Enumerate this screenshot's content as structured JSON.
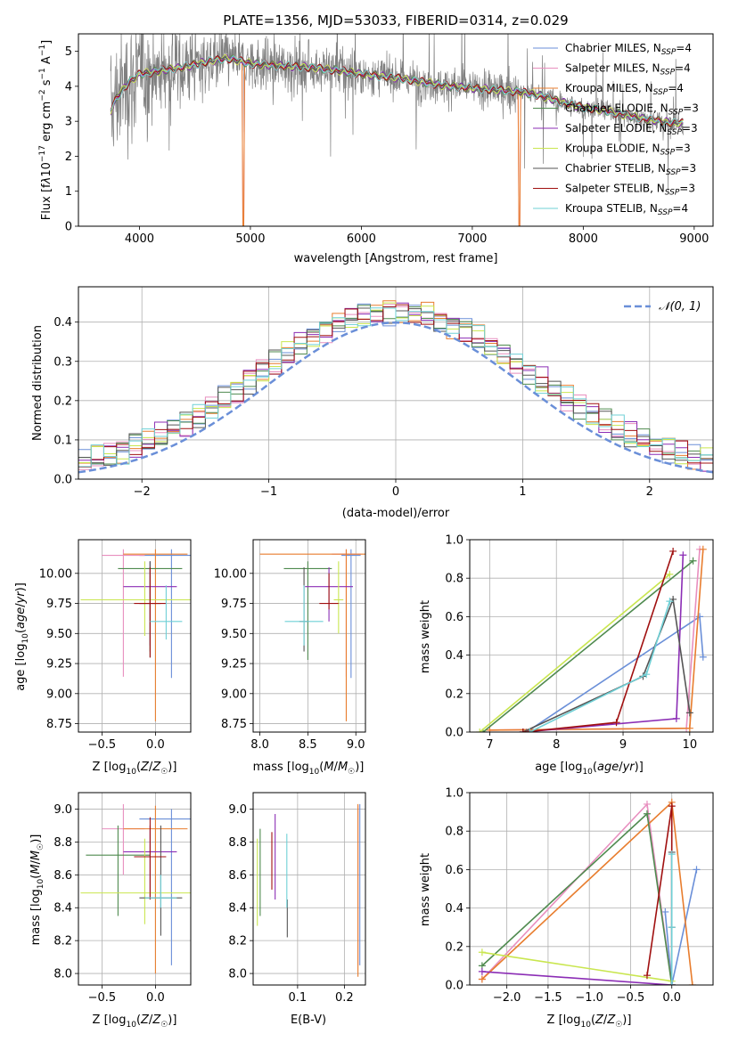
{
  "series_colors": {
    "Chabrier MILES": "#6a8fd8",
    "Salpeter MILES": "#e88fbf",
    "Kroupa MILES": "#e87d2e",
    "Chabrier ELODIE": "#4f8a4f",
    "Salpeter ELODIE": "#8b2db5",
    "Kroupa ELODIE": "#c9e64f",
    "Chabrier STELIB": "#555555",
    "Salpeter STELIB": "#a01010",
    "Kroupa STELIB": "#6fd0d6"
  },
  "chart_data": [
    {
      "id": "spectrum",
      "type": "line",
      "title": "PLATE=1356, MJD=53033, FIBERID=0314, z=0.029",
      "xlabel": "wavelength [Angstrom, rest frame]",
      "ylabel": "Flux [f_λ 10^-17 erg cm^-2 s^-1 A^-1]",
      "xlim": [
        3450,
        9170
      ],
      "ylim": [
        0,
        5.5
      ],
      "xticks": [
        4000,
        5000,
        6000,
        7000,
        8000,
        9000
      ],
      "yticks": [
        0,
        1,
        2,
        3,
        4,
        5
      ],
      "legend": [
        {
          "label": "Chabrier MILES, N_SSP=4",
          "series": "Chabrier MILES"
        },
        {
          "label": "Salpeter MILES, N_SSP=4",
          "series": "Salpeter MILES"
        },
        {
          "label": "Kroupa MILES, N_SSP=4",
          "series": "Kroupa MILES"
        },
        {
          "label": "Chabrier ELODIE, N_SSP=3",
          "series": "Chabrier ELODIE"
        },
        {
          "label": "Salpeter ELODIE, N_SSP=3",
          "series": "Salpeter ELODIE"
        },
        {
          "label": "Kroupa ELODIE, N_SSP=3",
          "series": "Kroupa ELODIE"
        },
        {
          "label": "Chabrier STELIB, N_SSP=3",
          "series": "Chabrier STELIB"
        },
        {
          "label": "Salpeter STELIB, N_SSP=3",
          "series": "Salpeter STELIB"
        },
        {
          "label": "Kroupa STELIB, N_SSP=4",
          "series": "Kroupa STELIB"
        }
      ],
      "legend_position": "top-right",
      "continuum": [
        [
          3740,
          3.3
        ],
        [
          3800,
          3.7
        ],
        [
          3900,
          4.1
        ],
        [
          4000,
          4.35
        ],
        [
          4200,
          4.45
        ],
        [
          4400,
          4.55
        ],
        [
          4600,
          4.7
        ],
        [
          4800,
          4.8
        ],
        [
          5000,
          4.65
        ],
        [
          5200,
          4.6
        ],
        [
          5500,
          4.55
        ],
        [
          5800,
          4.45
        ],
        [
          6000,
          4.35
        ],
        [
          6300,
          4.25
        ],
        [
          6500,
          4.15
        ],
        [
          6800,
          4.0
        ],
        [
          7000,
          3.95
        ],
        [
          7400,
          3.85
        ],
        [
          7600,
          3.75
        ],
        [
          7800,
          3.55
        ],
        [
          8000,
          3.4
        ],
        [
          8200,
          3.3
        ],
        [
          8500,
          3.1
        ],
        [
          8800,
          2.95
        ]
      ]
    },
    {
      "id": "residuals",
      "type": "line",
      "xlabel": "(data-model)/error",
      "ylabel": "Normed distribution",
      "xlim": [
        -2.5,
        2.5
      ],
      "ylim": [
        0,
        0.49
      ],
      "xticks": [
        -2,
        -1,
        0,
        1,
        2
      ],
      "yticks": [
        0.0,
        0.1,
        0.2,
        0.3,
        0.4
      ],
      "grid": true,
      "legend": [
        {
          "label": "𝒩(0, 1)"
        }
      ],
      "legend_position": "top-right",
      "reference_curve": "normal(0,1)",
      "reference_color": "#6a8fd8"
    },
    {
      "id": "age-vs-Z",
      "type": "scatter",
      "xlabel": "Z [log10(Z/Z☉)]",
      "ylabel": "age [log10(age/yr)]",
      "xlim": [
        -0.72,
        0.33
      ],
      "ylim": [
        8.68,
        10.28
      ],
      "xticks": [
        -0.5,
        0.0
      ],
      "yticks": [
        8.75,
        9.0,
        9.25,
        9.5,
        9.75,
        10.0
      ],
      "grid": true,
      "points": [
        {
          "series": "Chabrier MILES",
          "x": 0.15,
          "y": 10.15,
          "xerr": 0.3,
          "yerr": [
            9.13,
            10.2
          ]
        },
        {
          "series": "Salpeter MILES",
          "x": -0.3,
          "y": 10.15,
          "xerr": 0.2,
          "yerr": [
            9.14,
            10.2
          ]
        },
        {
          "series": "Kroupa MILES",
          "x": 0.0,
          "y": 10.16,
          "xerr": 0.3,
          "yerr": [
            8.77,
            10.2
          ]
        },
        {
          "series": "Chabrier ELODIE",
          "x": -0.05,
          "y": 10.04,
          "xerr": 0.3,
          "yerr": [
            9.35,
            10.1
          ]
        },
        {
          "series": "Salpeter ELODIE",
          "x": -0.05,
          "y": 9.89,
          "xerr": 0.25,
          "yerr": [
            9.4,
            10.1
          ]
        },
        {
          "series": "Kroupa ELODIE",
          "x": -0.1,
          "y": 9.78,
          "xerr": 0.6,
          "yerr": [
            9.48,
            10.1
          ]
        },
        {
          "series": "Chabrier STELIB",
          "x": -0.05,
          "y": 9.75,
          "xerr": 0.1,
          "yerr": [
            9.3,
            10.1
          ]
        },
        {
          "series": "Salpeter STELIB",
          "x": -0.05,
          "y": 9.75,
          "xerr": 0.15,
          "yerr": [
            9.3,
            10.05
          ]
        },
        {
          "series": "Kroupa STELIB",
          "x": 0.1,
          "y": 9.6,
          "xerr": 0.15,
          "yerr": [
            9.45,
            9.9
          ]
        }
      ]
    },
    {
      "id": "age-vs-mass",
      "type": "scatter",
      "xlabel": "mass [log10(M/M☉)]",
      "xlim": [
        7.93,
        9.1
      ],
      "ylim": [
        8.68,
        10.28
      ],
      "xticks": [
        8.0,
        8.5,
        9.0
      ],
      "yticks": [
        8.75,
        9.0,
        9.25,
        9.5,
        9.75,
        10.0
      ],
      "grid": true,
      "points": [
        {
          "series": "Chabrier MILES",
          "x": 8.95,
          "y": 10.15,
          "xerr": 0.1,
          "yerr": [
            9.13,
            10.2
          ]
        },
        {
          "series": "Salpeter MILES",
          "x": 8.9,
          "y": 10.16,
          "xerr": 0.15,
          "yerr": [
            9.14,
            10.2
          ]
        },
        {
          "series": "Kroupa MILES",
          "x": 8.9,
          "y": 10.16,
          "xerr": 0.9,
          "yerr": [
            8.77,
            10.2
          ]
        },
        {
          "series": "Chabrier ELODIE",
          "x": 8.5,
          "y": 10.04,
          "xerr": 0.25,
          "yerr": [
            9.28,
            10.1
          ]
        },
        {
          "series": "Salpeter ELODIE",
          "x": 8.72,
          "y": 9.89,
          "xerr": 0.25,
          "yerr": [
            9.6,
            10.05
          ]
        },
        {
          "series": "Kroupa ELODIE",
          "x": 8.82,
          "y": 9.78,
          "xerr": 0.05,
          "yerr": [
            9.5,
            10.1
          ]
        },
        {
          "series": "Chabrier STELIB",
          "x": 8.46,
          "y": 9.6,
          "xerr": 0.05,
          "yerr": [
            9.35,
            10.05
          ]
        },
        {
          "series": "Salpeter STELIB",
          "x": 8.72,
          "y": 9.75,
          "xerr": 0.1,
          "yerr": [
            9.7,
            10.0
          ]
        },
        {
          "series": "Kroupa STELIB",
          "x": 8.46,
          "y": 9.6,
          "xerr": 0.2,
          "yerr": [
            9.4,
            9.9
          ]
        }
      ]
    },
    {
      "id": "mass-weight-vs-age",
      "type": "line",
      "xlabel": "age [log10(age/yr)]",
      "ylabel": "mass weight",
      "xlim": [
        6.7,
        10.35
      ],
      "ylim": [
        0,
        1.0
      ],
      "xticks": [
        7,
        8,
        9,
        10
      ],
      "yticks": [
        0.0,
        0.2,
        0.4,
        0.6,
        0.8,
        1.0
      ],
      "grid": true,
      "series": [
        {
          "name": "Chabrier MILES",
          "points": [
            [
              7.55,
              0.0
            ],
            [
              10.15,
              0.6
            ],
            [
              10.2,
              0.39
            ]
          ]
        },
        {
          "name": "Salpeter MILES",
          "points": [
            [
              7.0,
              0.01
            ],
            [
              9.95,
              0.02
            ],
            [
              10.15,
              0.95
            ]
          ]
        },
        {
          "name": "Kroupa MILES",
          "points": [
            [
              7.0,
              0.01
            ],
            [
              10.0,
              0.02
            ],
            [
              10.2,
              0.95
            ]
          ]
        },
        {
          "name": "Chabrier ELODIE",
          "points": [
            [
              6.9,
              0.0
            ],
            [
              10.05,
              0.89
            ]
          ]
        },
        {
          "name": "Salpeter ELODIE",
          "points": [
            [
              7.5,
              0.0
            ],
            [
              9.8,
              0.07
            ],
            [
              9.9,
              0.92
            ]
          ]
        },
        {
          "name": "Kroupa ELODIE",
          "points": [
            [
              6.85,
              0.0
            ],
            [
              9.7,
              0.82
            ]
          ]
        },
        {
          "name": "Chabrier STELIB",
          "points": [
            [
              7.5,
              0.0
            ],
            [
              9.3,
              0.29
            ],
            [
              9.75,
              0.69
            ],
            [
              10.0,
              0.1
            ]
          ]
        },
        {
          "name": "Salpeter STELIB",
          "points": [
            [
              7.5,
              0.0
            ],
            [
              8.9,
              0.05
            ],
            [
              9.75,
              0.94
            ]
          ]
        },
        {
          "name": "Kroupa STELIB",
          "points": [
            [
              7.6,
              0.0
            ],
            [
              9.35,
              0.3
            ],
            [
              9.7,
              0.68
            ]
          ]
        }
      ]
    },
    {
      "id": "mass-vs-Z",
      "type": "scatter",
      "xlabel": "Z [log10(Z/Z☉)]",
      "ylabel": "mass [log10(M/M☉)]",
      "xlim": [
        -0.72,
        0.33
      ],
      "ylim": [
        7.93,
        9.1
      ],
      "xticks": [
        -0.5,
        0.0
      ],
      "yticks": [
        8.0,
        8.2,
        8.4,
        8.6,
        8.8,
        9.0
      ],
      "grid": true,
      "points": [
        {
          "series": "Chabrier MILES",
          "x": 0.15,
          "y": 8.94,
          "xerr": 0.3,
          "yerr": [
            8.05,
            9.0
          ]
        },
        {
          "series": "Salpeter MILES",
          "x": -0.3,
          "y": 8.88,
          "xerr": 0.2,
          "yerr": [
            8.6,
            9.03
          ]
        },
        {
          "series": "Kroupa MILES",
          "x": 0.0,
          "y": 8.88,
          "xerr": 0.3,
          "yerr": [
            8.0,
            9.02
          ]
        },
        {
          "series": "Chabrier ELODIE",
          "x": -0.35,
          "y": 8.72,
          "xerr": 0.3,
          "yerr": [
            8.35,
            8.9
          ]
        },
        {
          "series": "Salpeter ELODIE",
          "x": -0.05,
          "y": 8.74,
          "xerr": 0.25,
          "yerr": [
            8.45,
            8.9
          ]
        },
        {
          "series": "Kroupa ELODIE",
          "x": -0.1,
          "y": 8.49,
          "xerr": 0.6,
          "yerr": [
            8.3,
            8.82
          ]
        },
        {
          "series": "Chabrier STELIB",
          "x": 0.05,
          "y": 8.46,
          "xerr": 0.2,
          "yerr": [
            8.23,
            8.9
          ]
        },
        {
          "series": "Salpeter STELIB",
          "x": -0.05,
          "y": 8.71,
          "xerr": 0.15,
          "yerr": [
            8.45,
            8.95
          ]
        },
        {
          "series": "Kroupa STELIB",
          "x": 0.05,
          "y": 8.46,
          "xerr": 0.15,
          "yerr": [
            8.4,
            8.6
          ]
        }
      ]
    },
    {
      "id": "mass-vs-ebv",
      "type": "scatter",
      "xlabel": "E(B-V)",
      "xlim": [
        0.005,
        0.245
      ],
      "ylim": [
        7.93,
        9.1
      ],
      "xticks": [
        0.1,
        0.2
      ],
      "yticks": [
        8.0,
        8.2,
        8.4,
        8.6,
        8.8,
        9.0
      ],
      "grid": true,
      "points": [
        {
          "series": "Chabrier MILES",
          "x": 0.233,
          "yerr": [
            8.05,
            9.03
          ]
        },
        {
          "series": "Salpeter MILES",
          "x": 0.229,
          "yerr": [
            8.05,
            9.02
          ]
        },
        {
          "series": "Kroupa MILES",
          "x": 0.229,
          "yerr": [
            7.98,
            9.03
          ]
        },
        {
          "series": "Chabrier ELODIE",
          "x": 0.02,
          "yerr": [
            8.35,
            8.88
          ]
        },
        {
          "series": "Salpeter ELODIE",
          "x": 0.052,
          "yerr": [
            8.45,
            8.97
          ]
        },
        {
          "series": "Kroupa ELODIE",
          "x": 0.014,
          "yerr": [
            8.29,
            8.82
          ]
        },
        {
          "series": "Chabrier STELIB",
          "x": 0.078,
          "yerr": [
            8.22,
            8.45
          ]
        },
        {
          "series": "Salpeter STELIB",
          "x": 0.045,
          "yerr": [
            8.51,
            8.86
          ]
        },
        {
          "series": "Kroupa STELIB",
          "x": 0.077,
          "yerr": [
            8.4,
            8.85
          ]
        }
      ]
    },
    {
      "id": "mass-weight-vs-Z",
      "type": "line",
      "xlabel": "Z [log10(Z/Z☉)]",
      "ylabel": "mass weight",
      "xlim": [
        -2.45,
        0.5
      ],
      "ylim": [
        0,
        1.0
      ],
      "xticks": [
        -2.0,
        -1.5,
        -1.0,
        -0.5,
        0.0
      ],
      "yticks": [
        0.0,
        0.2,
        0.4,
        0.6,
        0.8,
        1.0
      ],
      "grid": true,
      "series": [
        {
          "name": "Chabrier MILES",
          "points": [
            [
              -0.08,
              0.38
            ],
            [
              0.0,
              0.0
            ],
            [
              0.3,
              0.6
            ]
          ]
        },
        {
          "name": "Salpeter MILES",
          "points": [
            [
              -2.3,
              0.03
            ],
            [
              -0.3,
              0.94
            ],
            [
              0.0,
              0.0
            ]
          ]
        },
        {
          "name": "Kroupa MILES",
          "points": [
            [
              -2.3,
              0.03
            ],
            [
              0.0,
              0.95
            ],
            [
              0.25,
              0.0
            ]
          ]
        },
        {
          "name": "Chabrier ELODIE",
          "points": [
            [
              -2.3,
              0.1
            ],
            [
              -0.3,
              0.89
            ],
            [
              0.0,
              0.0
            ]
          ]
        },
        {
          "name": "Salpeter ELODIE",
          "points": [
            [
              -2.3,
              0.07
            ],
            [
              0.0,
              0.0
            ]
          ]
        },
        {
          "name": "Kroupa ELODIE",
          "points": [
            [
              -2.3,
              0.17
            ],
            [
              0.0,
              0.02
            ]
          ]
        },
        {
          "name": "Chabrier STELIB",
          "points": [
            [
              0.0,
              0.3
            ],
            [
              0.0,
              0.69
            ],
            [
              0.0,
              0.0
            ]
          ]
        },
        {
          "name": "Salpeter STELIB",
          "points": [
            [
              -0.3,
              0.05
            ],
            [
              0.0,
              0.93
            ],
            [
              0.0,
              0.0
            ]
          ]
        },
        {
          "name": "Kroupa STELIB",
          "points": [
            [
              0.0,
              0.3
            ],
            [
              0.0,
              0.68
            ],
            [
              0.0,
              0.0
            ]
          ]
        }
      ]
    }
  ]
}
